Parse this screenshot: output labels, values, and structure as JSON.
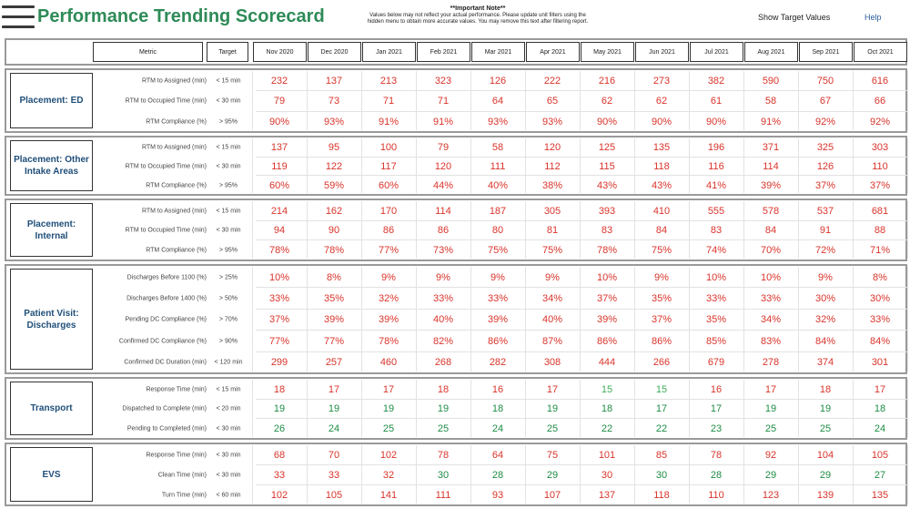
{
  "header": {
    "title": "Performance Trending Scorecard",
    "note_title": "**Important Note**",
    "note_text": "Values below may not reflect your actual performance. Please update unit filters using the hidden menu to obtain more accurate values. You may remove this text after filtering report.",
    "show_target": "Show Target Values",
    "help": "Help"
  },
  "columns": {
    "metric": "Metric",
    "target": "Target",
    "months": [
      "Nov 2020",
      "Dec 2020",
      "Jan 2021",
      "Feb 2021",
      "Mar 2021",
      "Apr 2021",
      "May 2021",
      "Jun 2021",
      "Jul 2021",
      "Aug 2021",
      "Sep 2021",
      "Oct 2021"
    ]
  },
  "colors": {
    "red": "#d9342b",
    "green": "#1e8c45",
    "light_green": "#3fae5a",
    "title": "#2e8b57",
    "section_label": "#1f4e79"
  },
  "sections": [
    {
      "label": "Placement: ED",
      "rows": [
        {
          "metric": "RTM to Assigned (min)",
          "target": "< 15 min",
          "values": [
            "232",
            "137",
            "213",
            "323",
            "126",
            "222",
            "216",
            "273",
            "382",
            "590",
            "750",
            "616"
          ],
          "colors": [
            "r",
            "r",
            "r",
            "r",
            "r",
            "r",
            "r",
            "r",
            "r",
            "r",
            "r",
            "r"
          ]
        },
        {
          "metric": "RTM to Occupied Time (min)",
          "target": "< 30 min",
          "values": [
            "79",
            "73",
            "71",
            "71",
            "64",
            "65",
            "62",
            "62",
            "61",
            "58",
            "67",
            "66"
          ],
          "colors": [
            "r",
            "r",
            "r",
            "r",
            "r",
            "r",
            "r",
            "r",
            "r",
            "r",
            "r",
            "r"
          ]
        },
        {
          "metric": "RTM Compliance (%)",
          "target": "> 95%",
          "values": [
            "90%",
            "93%",
            "91%",
            "91%",
            "93%",
            "93%",
            "90%",
            "90%",
            "90%",
            "91%",
            "92%",
            "92%"
          ],
          "colors": [
            "r",
            "r",
            "r",
            "r",
            "r",
            "r",
            "r",
            "r",
            "r",
            "r",
            "r",
            "r"
          ]
        }
      ]
    },
    {
      "label": "Placement: Other Intake Areas",
      "rows": [
        {
          "metric": "RTM to Assigned (min)",
          "target": "< 15 min",
          "values": [
            "137",
            "95",
            "100",
            "79",
            "58",
            "120",
            "125",
            "135",
            "196",
            "371",
            "325",
            "303"
          ],
          "colors": [
            "r",
            "r",
            "r",
            "r",
            "r",
            "r",
            "r",
            "r",
            "r",
            "r",
            "r",
            "r"
          ]
        },
        {
          "metric": "RTM to Occupied Time (min)",
          "target": "< 30 min",
          "values": [
            "119",
            "122",
            "117",
            "120",
            "111",
            "112",
            "115",
            "118",
            "116",
            "114",
            "126",
            "110"
          ],
          "colors": [
            "r",
            "r",
            "r",
            "r",
            "r",
            "r",
            "r",
            "r",
            "r",
            "r",
            "r",
            "r"
          ]
        },
        {
          "metric": "RTM Compliance (%)",
          "target": "> 95%",
          "values": [
            "60%",
            "59%",
            "60%",
            "44%",
            "40%",
            "38%",
            "43%",
            "43%",
            "41%",
            "39%",
            "37%",
            "37%"
          ],
          "colors": [
            "r",
            "r",
            "r",
            "r",
            "r",
            "r",
            "r",
            "r",
            "r",
            "r",
            "r",
            "r"
          ]
        }
      ]
    },
    {
      "label": "Placement: Internal",
      "rows": [
        {
          "metric": "RTM to Assigned (min)",
          "target": "< 15 min",
          "values": [
            "214",
            "162",
            "170",
            "114",
            "187",
            "305",
            "393",
            "410",
            "555",
            "578",
            "537",
            "681"
          ],
          "colors": [
            "r",
            "r",
            "r",
            "r",
            "r",
            "r",
            "r",
            "r",
            "r",
            "r",
            "r",
            "r"
          ]
        },
        {
          "metric": "RTM to Occupied Time (min)",
          "target": "< 30 min",
          "values": [
            "94",
            "90",
            "86",
            "86",
            "80",
            "81",
            "83",
            "84",
            "83",
            "84",
            "91",
            "88"
          ],
          "colors": [
            "r",
            "r",
            "r",
            "r",
            "r",
            "r",
            "r",
            "r",
            "r",
            "r",
            "r",
            "r"
          ]
        },
        {
          "metric": "RTM Compliance (%)",
          "target": "> 95%",
          "values": [
            "78%",
            "78%",
            "77%",
            "73%",
            "75%",
            "75%",
            "78%",
            "75%",
            "74%",
            "70%",
            "72%",
            "71%"
          ],
          "colors": [
            "r",
            "r",
            "r",
            "r",
            "r",
            "r",
            "r",
            "r",
            "r",
            "r",
            "r",
            "r"
          ]
        }
      ]
    },
    {
      "label": "Patient Visit: Discharges",
      "rows": [
        {
          "metric": "Discharges Before 1100 (%)",
          "target": "> 25%",
          "values": [
            "10%",
            "8%",
            "9%",
            "9%",
            "9%",
            "9%",
            "10%",
            "9%",
            "10%",
            "10%",
            "9%",
            "8%"
          ],
          "colors": [
            "r",
            "r",
            "r",
            "r",
            "r",
            "r",
            "r",
            "r",
            "r",
            "r",
            "r",
            "r"
          ]
        },
        {
          "metric": "Discharges Before 1400 (%)",
          "target": "> 50%",
          "values": [
            "33%",
            "35%",
            "32%",
            "33%",
            "33%",
            "34%",
            "37%",
            "35%",
            "33%",
            "33%",
            "30%",
            "30%"
          ],
          "colors": [
            "r",
            "r",
            "r",
            "r",
            "r",
            "r",
            "r",
            "r",
            "r",
            "r",
            "r",
            "r"
          ]
        },
        {
          "metric": "Pending DC Compliance (%)",
          "target": "> 70%",
          "values": [
            "37%",
            "39%",
            "39%",
            "40%",
            "39%",
            "40%",
            "39%",
            "37%",
            "35%",
            "34%",
            "32%",
            "33%"
          ],
          "colors": [
            "r",
            "r",
            "r",
            "r",
            "r",
            "r",
            "r",
            "r",
            "r",
            "r",
            "r",
            "r"
          ]
        },
        {
          "metric": "Confirmed DC Compliance (%)",
          "target": "> 90%",
          "values": [
            "77%",
            "77%",
            "78%",
            "82%",
            "86%",
            "87%",
            "86%",
            "86%",
            "85%",
            "83%",
            "84%",
            "84%"
          ],
          "colors": [
            "r",
            "r",
            "r",
            "r",
            "r",
            "r",
            "r",
            "r",
            "r",
            "r",
            "r",
            "r"
          ]
        },
        {
          "metric": "Confirmed DC Duration (min)",
          "target": "< 120 min",
          "values": [
            "299",
            "257",
            "460",
            "268",
            "282",
            "308",
            "444",
            "266",
            "679",
            "278",
            "374",
            "301"
          ],
          "colors": [
            "r",
            "r",
            "r",
            "r",
            "r",
            "r",
            "r",
            "r",
            "r",
            "r",
            "r",
            "r"
          ]
        }
      ]
    },
    {
      "label": "Transport",
      "rows": [
        {
          "metric": "Response Time (min)",
          "target": "< 15 min",
          "values": [
            "18",
            "17",
            "17",
            "18",
            "16",
            "17",
            "15",
            "15",
            "16",
            "17",
            "18",
            "17"
          ],
          "colors": [
            "r",
            "r",
            "r",
            "r",
            "r",
            "r",
            "l",
            "l",
            "r",
            "r",
            "r",
            "r"
          ]
        },
        {
          "metric": "Dispatched to Complete (min)",
          "target": "< 20 min",
          "values": [
            "19",
            "19",
            "19",
            "19",
            "18",
            "19",
            "18",
            "17",
            "17",
            "19",
            "19",
            "18"
          ],
          "colors": [
            "g",
            "g",
            "g",
            "g",
            "g",
            "g",
            "g",
            "g",
            "g",
            "g",
            "g",
            "g"
          ]
        },
        {
          "metric": "Pending to Completed (min)",
          "target": "< 30 min",
          "values": [
            "26",
            "24",
            "25",
            "25",
            "24",
            "25",
            "22",
            "22",
            "23",
            "25",
            "25",
            "24"
          ],
          "colors": [
            "g",
            "g",
            "g",
            "g",
            "g",
            "g",
            "g",
            "g",
            "g",
            "g",
            "g",
            "g"
          ]
        }
      ]
    },
    {
      "label": "EVS",
      "rows": [
        {
          "metric": "Response Time (min)",
          "target": "< 30 min",
          "values": [
            "68",
            "70",
            "102",
            "78",
            "64",
            "75",
            "101",
            "85",
            "78",
            "92",
            "104",
            "105"
          ],
          "colors": [
            "r",
            "r",
            "r",
            "r",
            "r",
            "r",
            "r",
            "r",
            "r",
            "r",
            "r",
            "r"
          ]
        },
        {
          "metric": "Clean Time (min)",
          "target": "< 30 min",
          "values": [
            "33",
            "33",
            "32",
            "30",
            "28",
            "29",
            "30",
            "30",
            "28",
            "29",
            "29",
            "27"
          ],
          "colors": [
            "r",
            "r",
            "r",
            "g",
            "g",
            "g",
            "r",
            "g",
            "g",
            "g",
            "g",
            "g"
          ]
        },
        {
          "metric": "Turn Time (min)",
          "target": "< 60 min",
          "values": [
            "102",
            "105",
            "141",
            "111",
            "93",
            "107",
            "137",
            "118",
            "110",
            "123",
            "139",
            "135"
          ],
          "colors": [
            "r",
            "r",
            "r",
            "r",
            "r",
            "r",
            "r",
            "r",
            "r",
            "r",
            "r",
            "r"
          ]
        }
      ]
    }
  ]
}
